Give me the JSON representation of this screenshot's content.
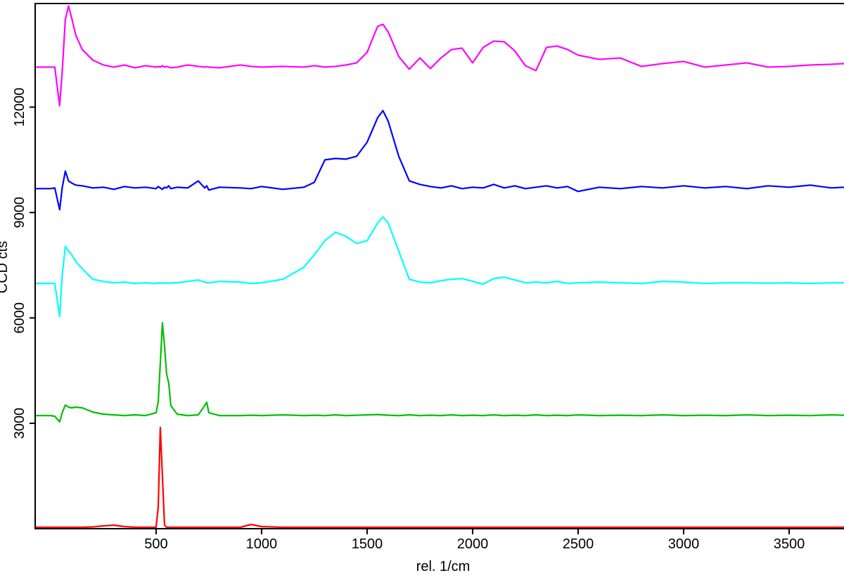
{
  "chart_data": {
    "type": "line",
    "xlabel": "rel. 1/cm",
    "ylabel": "CCD cts",
    "x": [
      -70,
      0,
      20,
      43,
      55,
      70,
      85,
      100,
      120,
      150,
      200,
      250,
      300,
      350,
      400,
      450,
      500,
      510,
      520,
      530,
      540,
      550,
      560,
      570,
      600,
      650,
      700,
      730,
      740,
      750,
      800,
      900,
      950,
      1000,
      1100,
      1200,
      1250,
      1300,
      1350,
      1400,
      1450,
      1500,
      1550,
      1575,
      1600,
      1650,
      1700,
      1750,
      1800,
      1850,
      1900,
      1950,
      2000,
      2050,
      2100,
      2150,
      2200,
      2250,
      2300,
      2350,
      2400,
      2450,
      2500,
      2600,
      2700,
      2800,
      2900,
      3000,
      3100,
      3200,
      3300,
      3400,
      3500,
      3600,
      3700,
      3760
    ],
    "series": [
      {
        "color": "#ff00ff",
        "values": [
          13140,
          13140,
          13140,
          12040,
          13000,
          14500,
          14880,
          14540,
          14040,
          13640,
          13340,
          13200,
          13140,
          13200,
          13120,
          13180,
          13140,
          13160,
          13140,
          13180,
          13140,
          13160,
          13140,
          13120,
          13140,
          13200,
          13160,
          13140,
          13150,
          13140,
          13120,
          13200,
          13160,
          13140,
          13160,
          13140,
          13180,
          13140,
          13160,
          13200,
          13260,
          13560,
          14300,
          14360,
          14140,
          13440,
          13080,
          13400,
          13100,
          13400,
          13640,
          13680,
          13260,
          13700,
          13880,
          13860,
          13600,
          13180,
          13040,
          13700,
          13740,
          13640,
          13480,
          13360,
          13400,
          13160,
          13240,
          13300,
          13140,
          13200,
          13260,
          13140,
          13160,
          13200,
          13220,
          13240
        ]
      },
      {
        "color": "#0000ff",
        "values": [
          9680,
          9680,
          9700,
          9080,
          9700,
          10180,
          9900,
          9840,
          9780,
          9760,
          9700,
          9720,
          9660,
          9740,
          9700,
          9720,
          9680,
          9740,
          9700,
          9660,
          9720,
          9700,
          9760,
          9680,
          9720,
          9700,
          9900,
          9700,
          9760,
          9640,
          9720,
          9700,
          9680,
          9740,
          9660,
          9720,
          9860,
          10500,
          10540,
          10520,
          10600,
          11000,
          11700,
          11900,
          11600,
          10600,
          9900,
          9800,
          9740,
          9700,
          9760,
          9680,
          9720,
          9700,
          9800,
          9700,
          9760,
          9680,
          9720,
          9760,
          9700,
          9740,
          9600,
          9720,
          9680,
          9740,
          9700,
          9760,
          9700,
          9740,
          9680,
          9760,
          9720,
          9780,
          9700,
          9720
        ]
      },
      {
        "color": "#00ffff",
        "values": [
          6980,
          6980,
          6980,
          6040,
          7200,
          8040,
          7900,
          7800,
          7600,
          7400,
          7100,
          7040,
          7000,
          7020,
          6980,
          7000,
          6980,
          7000,
          6980,
          7000,
          6990,
          7000,
          6980,
          7000,
          7000,
          7040,
          7080,
          7020,
          7000,
          7000,
          7040,
          7020,
          6980,
          7000,
          7100,
          7440,
          7800,
          8200,
          8440,
          8320,
          8120,
          8200,
          8700,
          8880,
          8700,
          7900,
          7100,
          7020,
          7000,
          7060,
          7100,
          7120,
          7040,
          6960,
          7120,
          7160,
          7080,
          7000,
          7020,
          7000,
          7040,
          6980,
          7000,
          7020,
          7000,
          6980,
          7040,
          7020,
          6980,
          7000,
          7000,
          6990,
          7000,
          6980,
          7000,
          7000
        ]
      },
      {
        "color": "#00c000",
        "values": [
          3220,
          3220,
          3200,
          3040,
          3300,
          3520,
          3460,
          3440,
          3460,
          3440,
          3320,
          3260,
          3240,
          3220,
          3240,
          3220,
          3300,
          3600,
          4700,
          5860,
          5200,
          4400,
          4140,
          3500,
          3260,
          3220,
          3240,
          3500,
          3600,
          3300,
          3220,
          3220,
          3230,
          3220,
          3240,
          3220,
          3230,
          3220,
          3240,
          3220,
          3230,
          3240,
          3250,
          3240,
          3230,
          3220,
          3240,
          3220,
          3230,
          3220,
          3240,
          3220,
          3230,
          3220,
          3240,
          3220,
          3230,
          3220,
          3240,
          3220,
          3230,
          3220,
          3240,
          3220,
          3230,
          3220,
          3240,
          3220,
          3230,
          3220,
          3240,
          3220,
          3230,
          3220,
          3240,
          3230
        ]
      },
      {
        "color": "#ff0000",
        "values": [
          40,
          40,
          40,
          40,
          40,
          40,
          40,
          40,
          40,
          40,
          50,
          80,
          100,
          60,
          40,
          40,
          40,
          600,
          2880,
          1500,
          100,
          40,
          40,
          40,
          40,
          40,
          40,
          40,
          40,
          40,
          40,
          40,
          120,
          60,
          40,
          40,
          40,
          40,
          40,
          40,
          40,
          40,
          40,
          40,
          40,
          40,
          40,
          40,
          40,
          40,
          40,
          40,
          40,
          40,
          40,
          40,
          40,
          40,
          40,
          40,
          40,
          40,
          40,
          40,
          40,
          40,
          40,
          40,
          40,
          40,
          40,
          40,
          40,
          40,
          40,
          40
        ]
      }
    ],
    "xlim": [
      -73,
      3760
    ],
    "xticks": [
      500,
      1000,
      1500,
      2000,
      2500,
      3000,
      3500
    ],
    "ylim": [
      0,
      14950
    ],
    "yticks": [
      3000,
      6000,
      9000,
      12000
    ]
  }
}
